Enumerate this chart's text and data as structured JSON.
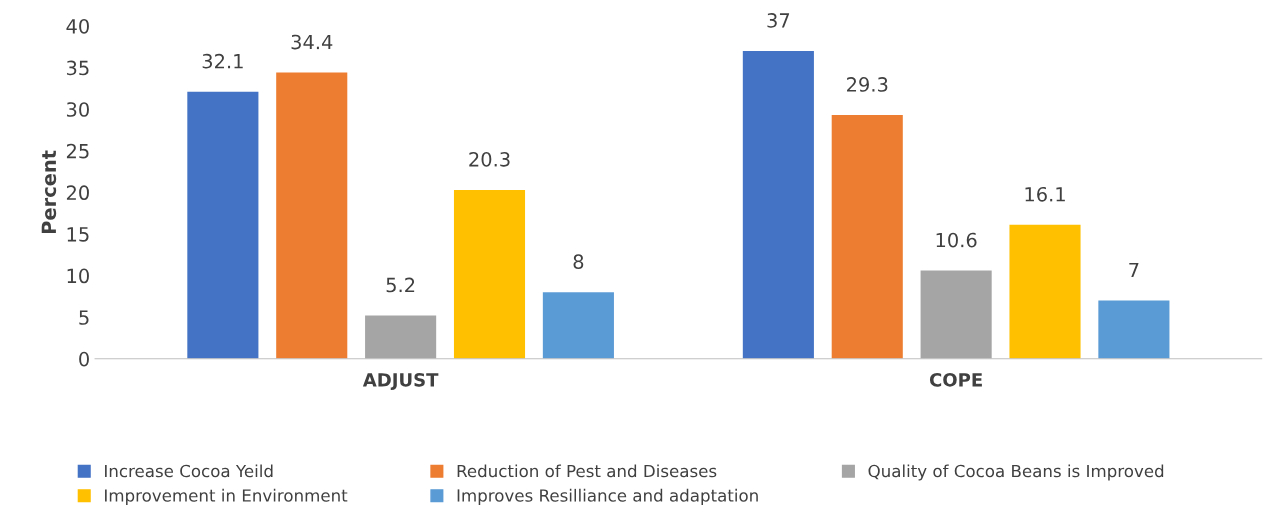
{
  "chart_data": {
    "type": "bar",
    "ylabel": "Percent",
    "categories": [
      "ADJUST",
      "COPE"
    ],
    "series": [
      {
        "name": "Increase Cocoa Yeild",
        "color": "#4472c4",
        "values": [
          32.1,
          37
        ]
      },
      {
        "name": "Reduction of Pest and Diseases",
        "color": "#ed7d31",
        "values": [
          34.4,
          29.3
        ]
      },
      {
        "name": "Quality of Cocoa Beans is Improved",
        "color": "#a5a5a5",
        "values": [
          5.2,
          10.6
        ]
      },
      {
        "name": "Improvement in Environment",
        "color": "#ffc000",
        "values": [
          20.3,
          16.1
        ]
      },
      {
        "name": "Improves Resilliance and adaptation",
        "color": "#5b9bd5",
        "values": [
          8,
          7
        ]
      }
    ],
    "ylim": [
      0,
      40
    ],
    "yticks": [
      0,
      5,
      10,
      15,
      20,
      25,
      30,
      35,
      40
    ],
    "data_labels": true,
    "grid": false,
    "legend": "bottom"
  }
}
